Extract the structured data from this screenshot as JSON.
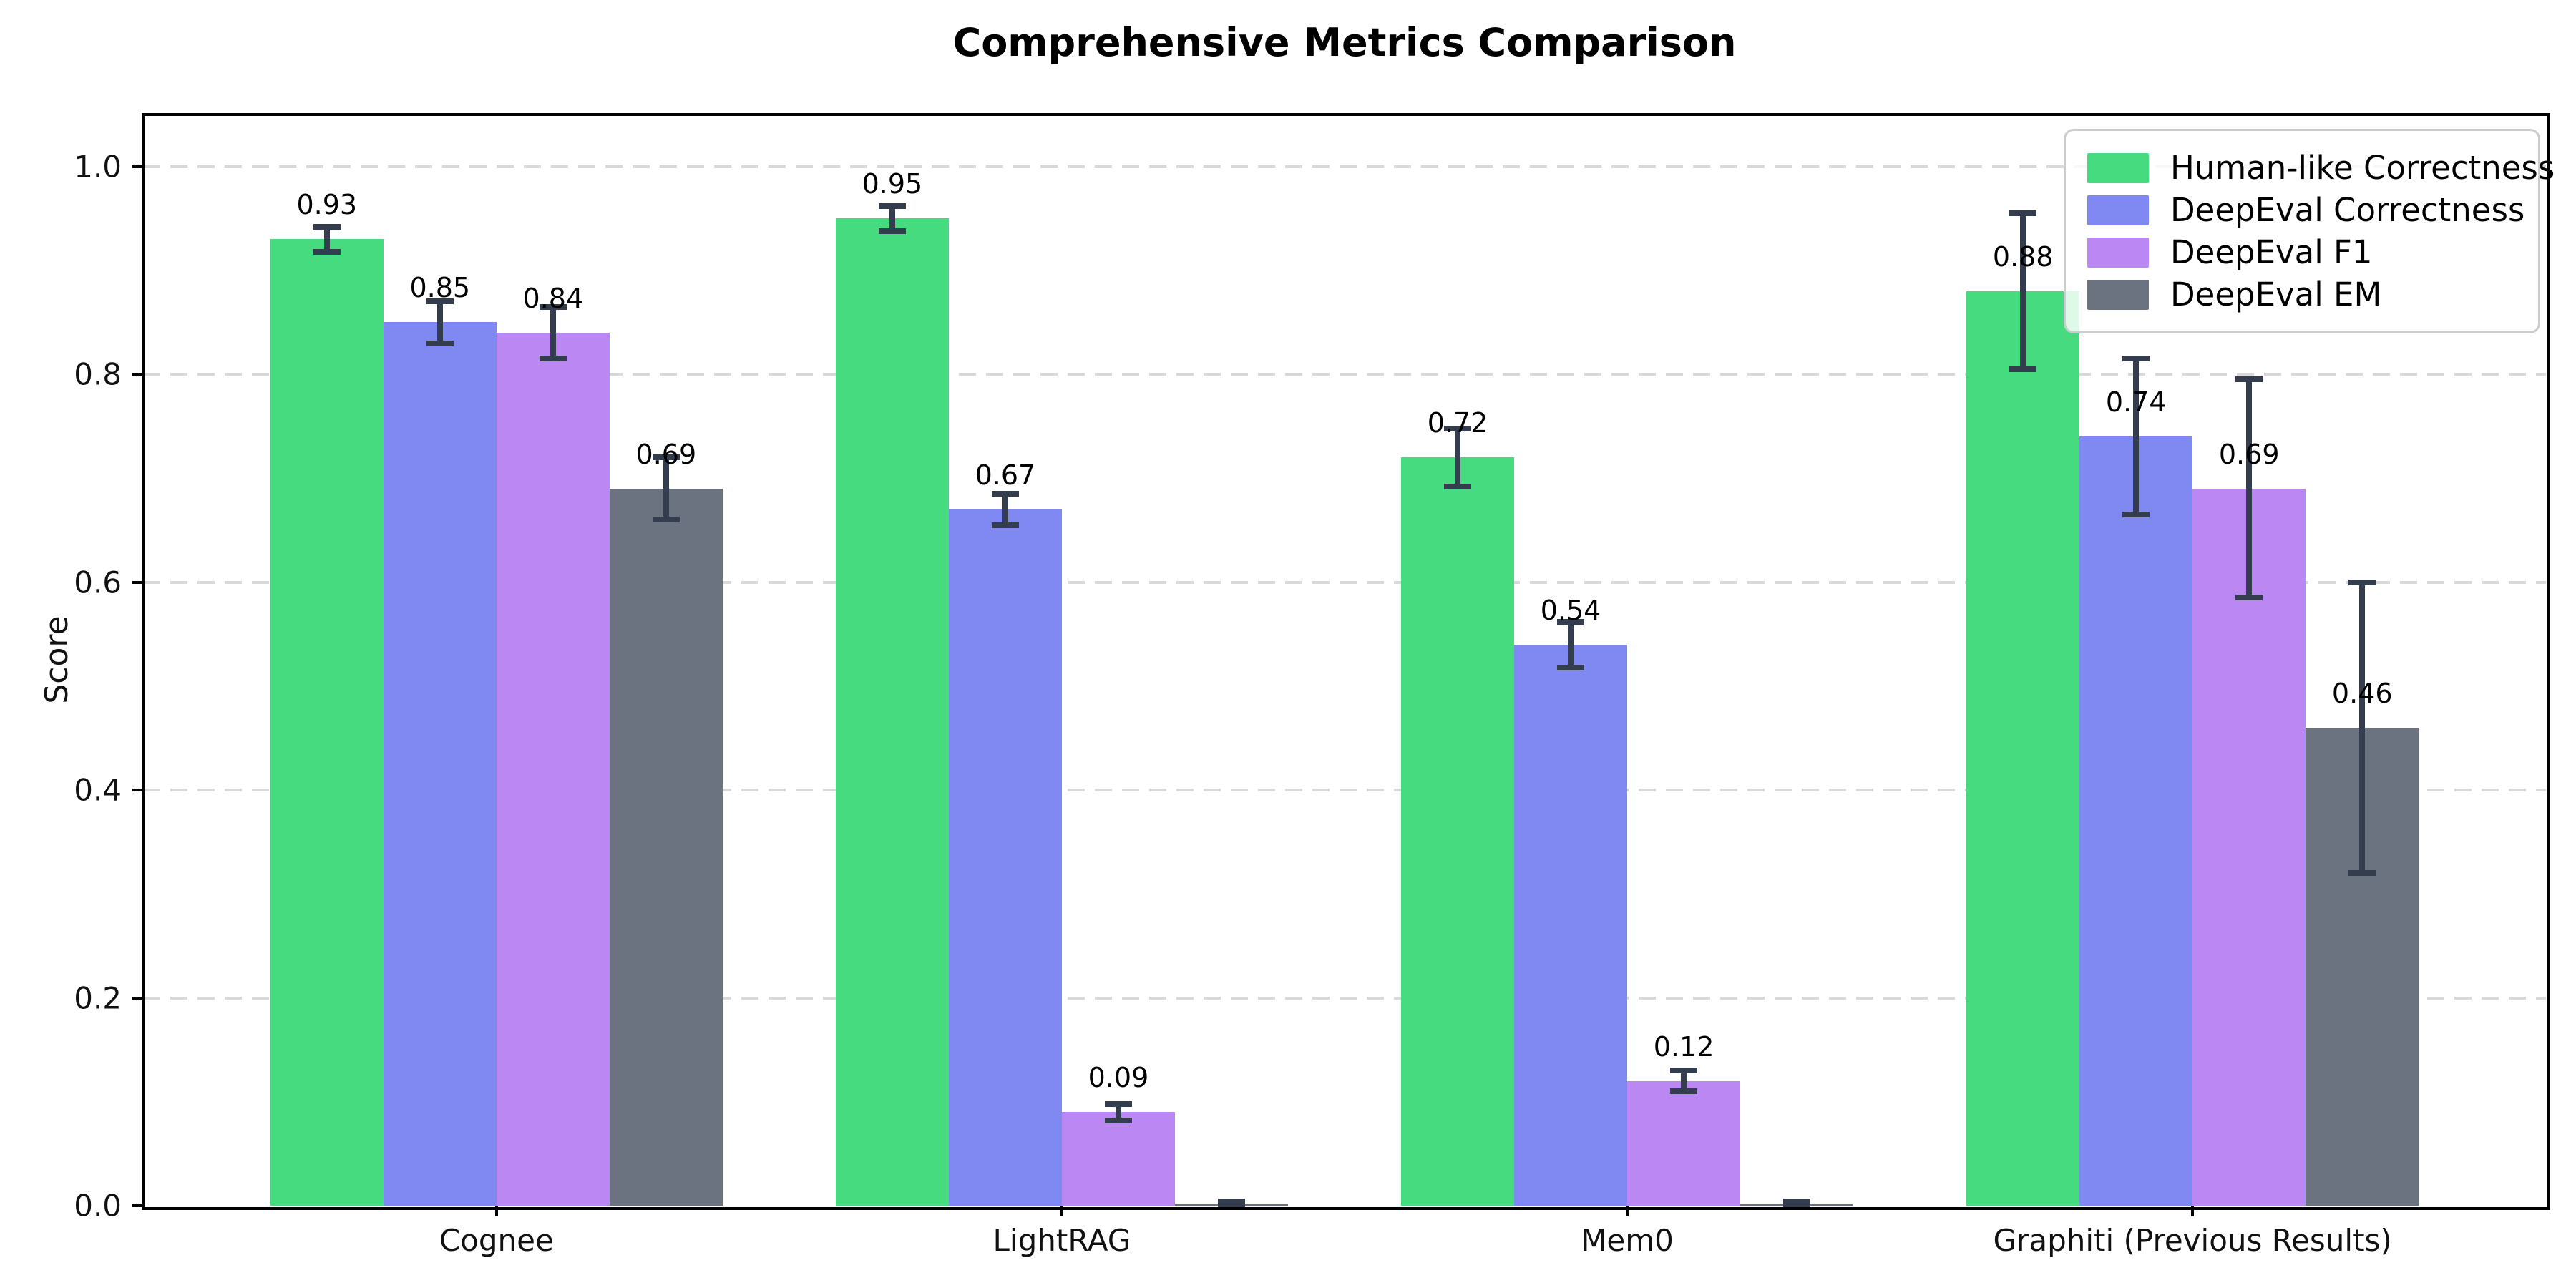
{
  "title": "Comprehensive Metrics Comparison",
  "chart_data": {
    "type": "bar",
    "title": "Comprehensive Metrics Comparison",
    "xlabel": "",
    "ylabel": "Score",
    "ylim": [
      0,
      1.05
    ],
    "yticks": [
      "0.0",
      "0.2",
      "0.4",
      "0.6",
      "0.8",
      "1.0"
    ],
    "ytick_values": [
      0.0,
      0.2,
      0.4,
      0.6,
      0.8,
      1.0
    ],
    "grid": "horizontal dashed gridlines at 0.2 intervals",
    "legend_position": "upper right",
    "bar_label_format": "%.2f",
    "categories": [
      "Cognee",
      "LightRAG",
      "Mem0",
      "Graphiti (Previous Results)"
    ],
    "series": [
      {
        "name": "Human-like Correctness",
        "color": "#47db80",
        "values": [
          0.93,
          0.95,
          0.72,
          0.88
        ],
        "errors": [
          0.012,
          0.012,
          0.028,
          0.075
        ],
        "labels": [
          "0.93",
          "0.95",
          "0.72",
          "0.88"
        ]
      },
      {
        "name": "DeepEval Correctness",
        "color": "#8089f2",
        "values": [
          0.85,
          0.67,
          0.54,
          0.74
        ],
        "errors": [
          0.02,
          0.015,
          0.022,
          0.075
        ],
        "labels": [
          "0.85",
          "0.67",
          "0.54",
          "0.74"
        ]
      },
      {
        "name": "DeepEval F1",
        "color": "#bb87f2",
        "values": [
          0.84,
          0.09,
          0.12,
          0.69
        ],
        "errors": [
          0.025,
          0.008,
          0.01,
          0.105
        ],
        "labels": [
          "0.84",
          "0.09",
          "0.12",
          "0.69"
        ]
      },
      {
        "name": "DeepEval EM",
        "color": "#6b7280",
        "values": [
          0.69,
          0.0,
          0.0,
          0.46
        ],
        "errors": [
          0.03,
          0.004,
          0.004,
          0.14
        ],
        "labels": [
          "0.69",
          "",
          "",
          "0.46"
        ]
      }
    ],
    "colors": {
      "error_bar": "#343d4e",
      "grid": "#d9d9d9",
      "spine": "#000000",
      "background": "#ffffff",
      "legend_border": "#cccccc"
    }
  }
}
